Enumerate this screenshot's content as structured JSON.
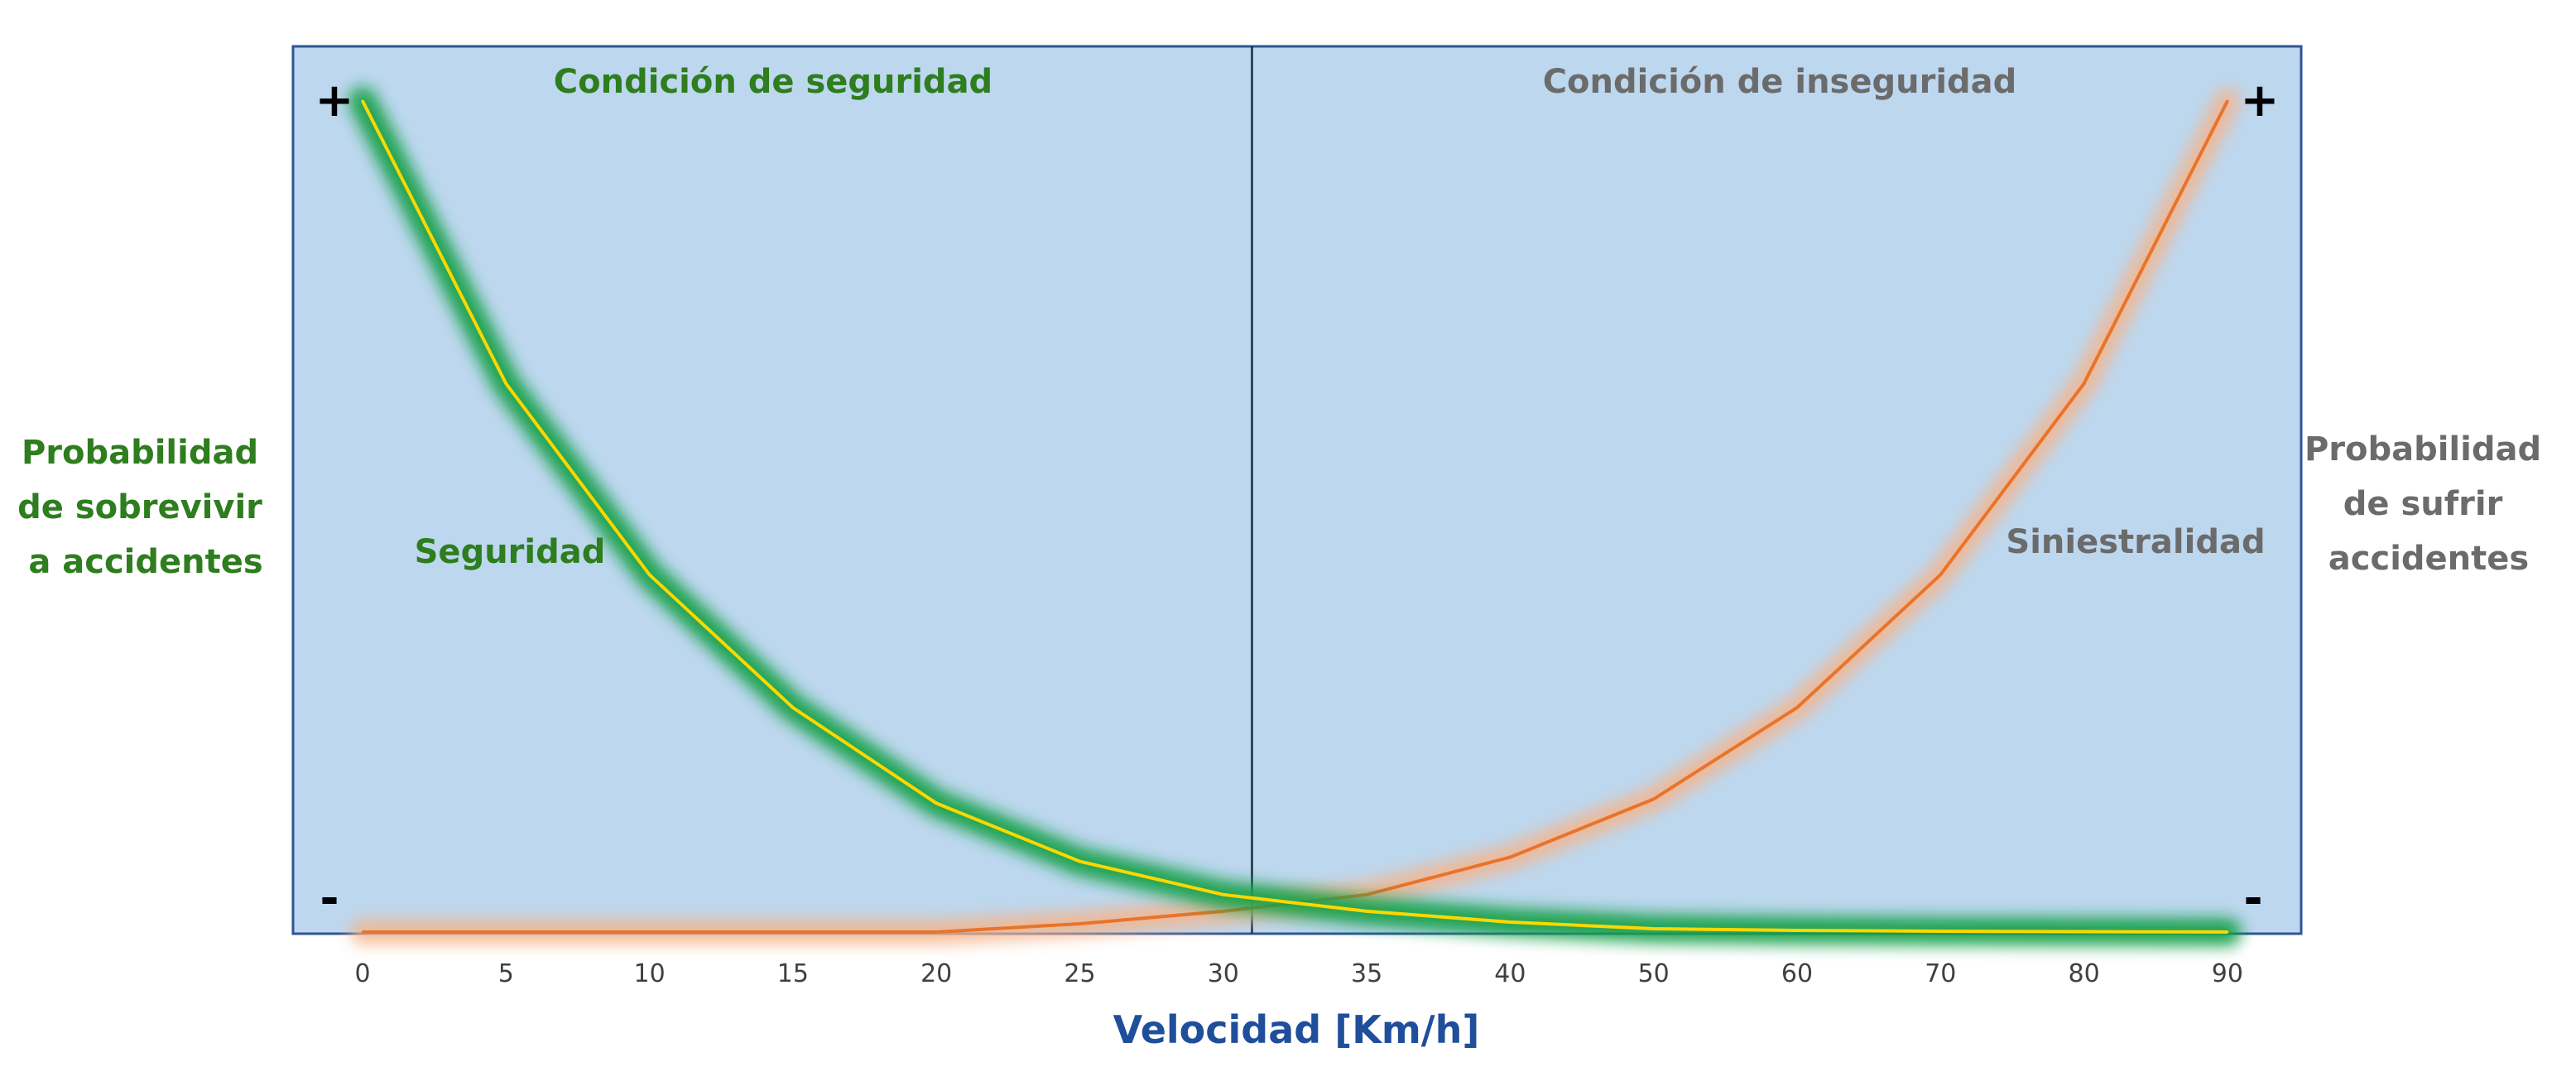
{
  "chart_data": {
    "type": "line",
    "title": "",
    "xlabel": "Velocidad  [Km/h]",
    "ylabel_left": [
      "Probabilidad",
      "de sobrevivir",
      "a accidentes"
    ],
    "ylabel_right": [
      "Probabilidad",
      "de sufrir",
      "accidentes"
    ],
    "x": [
      "0",
      "5",
      "10",
      "15",
      "20",
      "25",
      "30",
      "35",
      "40",
      "50",
      "60",
      "70",
      "80",
      "90"
    ],
    "series": [
      {
        "name": "Seguridad",
        "color": "#ffd700",
        "glow": "#12a14a",
        "values": [
          1.0,
          0.66,
          0.43,
          0.27,
          0.155,
          0.085,
          0.045,
          0.025,
          0.012,
          0.004,
          0.002,
          0.001,
          0.0005,
          0.0
        ]
      },
      {
        "name": "Siniestralidad",
        "color": "#e8742a",
        "glow": "#f6b48a",
        "values": [
          0.0,
          0.0,
          0.0,
          0.0,
          0.0,
          0.01,
          0.025,
          0.045,
          0.09,
          0.16,
          0.27,
          0.43,
          0.66,
          1.0
        ]
      }
    ],
    "ylim": [
      0,
      1
    ],
    "regions": [
      {
        "label": "Condición de seguridad",
        "color": "#2e7d1e"
      },
      {
        "label": "Condición de inseguridad",
        "color": "#6b6b6b"
      }
    ],
    "divider_x": 31,
    "y_markers": {
      "top_left": "+",
      "bottom_left": "-",
      "top_right": "+",
      "bottom_right": "-"
    },
    "colors": {
      "plot_bg": "#bdd7ee",
      "frame": "#2f5597",
      "xlabel": "#1f4e9b",
      "left_label": "#2e7d1e",
      "right_label": "#6b6b6b"
    }
  }
}
